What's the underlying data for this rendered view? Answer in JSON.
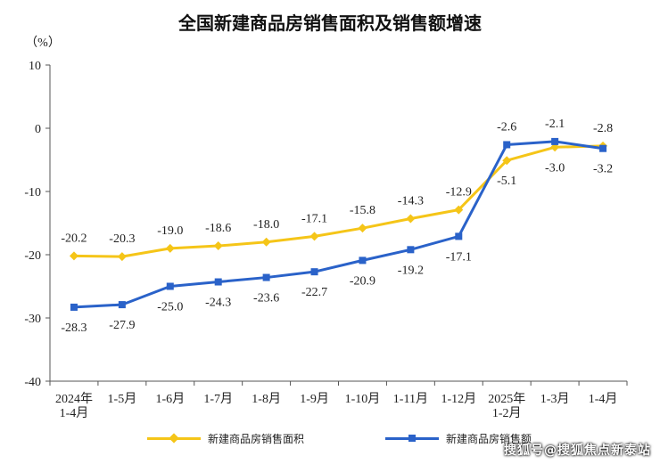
{
  "title": "全国新建商品房销售面积及销售额增速",
  "unit_label": "（%）",
  "watermark": "搜狐号@搜狐焦点新泰站",
  "colors": {
    "area": "#f5c518",
    "sales": "#2a62c9",
    "axis": "#555555"
  },
  "legend": {
    "area_label": "新建商品房销售面积",
    "sales_label": "新建商品房销售额"
  },
  "chart_data": {
    "type": "line",
    "title": "全国新建商品房销售面积及销售额增速",
    "ylabel": "（%）",
    "ylim": [
      -40,
      10
    ],
    "yticks": [
      10,
      0,
      -10,
      -20,
      -30,
      -40
    ],
    "grid": false,
    "legend_position": "bottom",
    "categories": [
      [
        "2024年",
        "1-4月"
      ],
      [
        "1-5月"
      ],
      [
        "1-6月"
      ],
      [
        "1-7月"
      ],
      [
        "1-8月"
      ],
      [
        "1-9月"
      ],
      [
        "1-10月"
      ],
      [
        "1-11月"
      ],
      [
        "1-12月"
      ],
      [
        "2025年",
        "1-2月"
      ],
      [
        "1-3月"
      ],
      [
        "1-4月"
      ]
    ],
    "series": [
      {
        "name": "新建商品房销售面积",
        "key": "area",
        "values": [
          -20.2,
          -20.3,
          -19.0,
          -18.6,
          -18.0,
          -17.1,
          -15.8,
          -14.3,
          -12.9,
          -5.1,
          -3.0,
          -2.8
        ],
        "labels": [
          "-20.2",
          "-20.3",
          "-19.0",
          "-18.6",
          "-18.0",
          "-17.1",
          "-15.8",
          "-14.3",
          "-12.9",
          "-5.1",
          "-3.0",
          "-2.8"
        ]
      },
      {
        "name": "新建商品房销售额",
        "key": "sales",
        "values": [
          -28.3,
          -27.9,
          -25.0,
          -24.3,
          -23.6,
          -22.7,
          -20.9,
          -19.2,
          -17.1,
          -2.6,
          -2.1,
          -3.2
        ],
        "labels": [
          "-28.3",
          "-27.9",
          "-25.0",
          "-24.3",
          "-23.6",
          "-22.7",
          "-20.9",
          "-19.2",
          "-17.1",
          "-2.6",
          "-2.1",
          "-3.2"
        ]
      }
    ]
  }
}
